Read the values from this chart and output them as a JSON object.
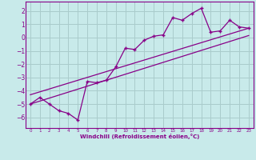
{
  "xlabel": "Windchill (Refroidissement éolien,°C)",
  "bg_color": "#c8eaea",
  "grid_color": "#aacccc",
  "line_color": "#880088",
  "xlim": [
    -0.5,
    23.5
  ],
  "ylim": [
    -6.8,
    2.7
  ],
  "yticks": [
    -6,
    -5,
    -4,
    -3,
    -2,
    -1,
    0,
    1,
    2
  ],
  "xticks": [
    0,
    1,
    2,
    3,
    4,
    5,
    6,
    7,
    8,
    9,
    10,
    11,
    12,
    13,
    14,
    15,
    16,
    17,
    18,
    19,
    20,
    21,
    22,
    23
  ],
  "series1_x": [
    0,
    1,
    2,
    3,
    4,
    5,
    6,
    7,
    8,
    9,
    10,
    11,
    12,
    13,
    14,
    15,
    16,
    17,
    18,
    19,
    20,
    21,
    22,
    23
  ],
  "series1_y": [
    -5.0,
    -4.5,
    -5.0,
    -5.5,
    -5.7,
    -6.2,
    -3.3,
    -3.4,
    -3.2,
    -2.2,
    -0.8,
    -0.9,
    -0.2,
    0.1,
    0.2,
    1.5,
    1.3,
    1.8,
    2.2,
    0.4,
    0.5,
    1.3,
    0.8,
    0.7
  ],
  "series2_x": [
    0,
    23
  ],
  "series2_y": [
    -5.0,
    0.15
  ],
  "series3_x": [
    0,
    23
  ],
  "series3_y": [
    -4.3,
    0.7
  ]
}
